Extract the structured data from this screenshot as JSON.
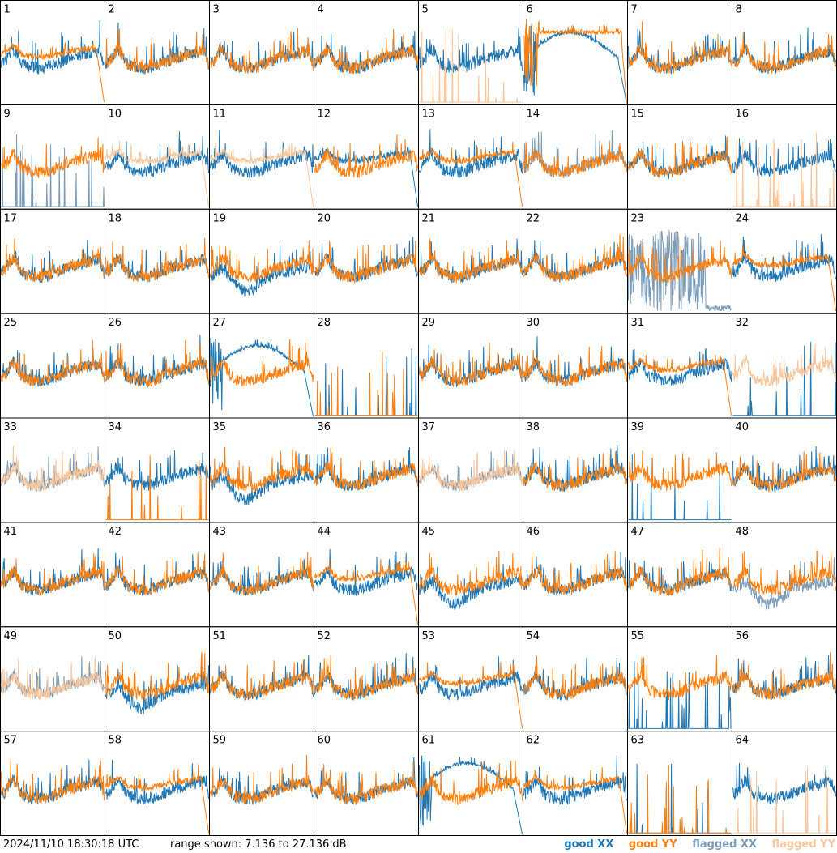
{
  "footer": {
    "timestamp": "2024/11/10 18:30:18 UTC",
    "range": "range shown: 7.136 to 27.136 dB"
  },
  "legend": [
    {
      "label": "good XX",
      "color": "#1f77b4"
    },
    {
      "label": "good YY",
      "color": "#ff7f0e"
    },
    {
      "label": "flagged XX",
      "color": "#7a9cb8"
    },
    {
      "label": "flagged YY",
      "color": "#f9c59a"
    }
  ],
  "chart_data": {
    "type": "line",
    "layout": "8x8 small multiples",
    "ylim_db": [
      7.136,
      27.136
    ],
    "panels": [
      {
        "id": "1",
        "xx": "good",
        "yy": "good",
        "xx_shape": "normal",
        "yy_shape": "cutoff"
      },
      {
        "id": "2",
        "xx": "good",
        "yy": "good",
        "xx_shape": "normal",
        "yy_shape": "normal"
      },
      {
        "id": "3",
        "xx": "good",
        "yy": "good",
        "xx_shape": "normal",
        "yy_shape": "normal"
      },
      {
        "id": "4",
        "xx": "good",
        "yy": "good",
        "xx_shape": "normal",
        "yy_shape": "normal"
      },
      {
        "id": "5",
        "xx": "good",
        "yy": "flagged",
        "xx_shape": "normal",
        "yy_shape": "spikes"
      },
      {
        "id": "6",
        "xx": "good",
        "yy": "good",
        "xx_shape": "hump",
        "yy_shape": "high"
      },
      {
        "id": "7",
        "xx": "good",
        "yy": "good",
        "xx_shape": "normal",
        "yy_shape": "normal"
      },
      {
        "id": "8",
        "xx": "good",
        "yy": "good",
        "xx_shape": "normal",
        "yy_shape": "normal"
      },
      {
        "id": "9",
        "xx": "flagged",
        "yy": "good",
        "xx_shape": "spikes",
        "yy_shape": "normal"
      },
      {
        "id": "10",
        "xx": "good",
        "yy": "flagged",
        "xx_shape": "normal",
        "yy_shape": "cutoff"
      },
      {
        "id": "11",
        "xx": "good",
        "yy": "flagged",
        "xx_shape": "normal",
        "yy_shape": "cutoff"
      },
      {
        "id": "12",
        "xx": "good",
        "yy": "good",
        "xx_shape": "cutoff",
        "yy_shape": "normal"
      },
      {
        "id": "13",
        "xx": "good",
        "yy": "good",
        "xx_shape": "normal",
        "yy_shape": "cutoff"
      },
      {
        "id": "14",
        "xx": "flagged",
        "yy": "good",
        "xx_shape": "normal",
        "yy_shape": "normal"
      },
      {
        "id": "15",
        "xx": "good",
        "yy": "good",
        "xx_shape": "normal",
        "yy_shape": "normal"
      },
      {
        "id": "16",
        "xx": "good",
        "yy": "flagged",
        "xx_shape": "normal",
        "yy_shape": "spikes"
      },
      {
        "id": "17",
        "xx": "good",
        "yy": "good",
        "xx_shape": "normal",
        "yy_shape": "normal"
      },
      {
        "id": "18",
        "xx": "good",
        "yy": "good",
        "xx_shape": "normal",
        "yy_shape": "normal"
      },
      {
        "id": "19",
        "xx": "good",
        "yy": "good",
        "xx_shape": "low",
        "yy_shape": "normal"
      },
      {
        "id": "20",
        "xx": "good",
        "yy": "good",
        "xx_shape": "normal",
        "yy_shape": "normal"
      },
      {
        "id": "21",
        "xx": "good",
        "yy": "good",
        "xx_shape": "normal",
        "yy_shape": "normal"
      },
      {
        "id": "22",
        "xx": "good",
        "yy": "good",
        "xx_shape": "normal",
        "yy_shape": "normal"
      },
      {
        "id": "23",
        "xx": "flagged",
        "yy": "good",
        "xx_shape": "dense",
        "yy_shape": "normal"
      },
      {
        "id": "24",
        "xx": "good",
        "yy": "good",
        "xx_shape": "normal",
        "yy_shape": "cutoff"
      },
      {
        "id": "25",
        "xx": "good",
        "yy": "good",
        "xx_shape": "normal",
        "yy_shape": "normal"
      },
      {
        "id": "26",
        "xx": "good",
        "yy": "good",
        "xx_shape": "normal",
        "yy_shape": "normal"
      },
      {
        "id": "27",
        "xx": "good",
        "yy": "good",
        "xx_shape": "hump",
        "yy_shape": "normal"
      },
      {
        "id": "28",
        "xx": "good",
        "yy": "good",
        "xx_shape": "spikes",
        "yy_shape": "spikes"
      },
      {
        "id": "29",
        "xx": "good",
        "yy": "good",
        "xx_shape": "normal",
        "yy_shape": "normal"
      },
      {
        "id": "30",
        "xx": "good",
        "yy": "good",
        "xx_shape": "normal",
        "yy_shape": "normal"
      },
      {
        "id": "31",
        "xx": "good",
        "yy": "good",
        "xx_shape": "normal",
        "yy_shape": "cutoff"
      },
      {
        "id": "32",
        "xx": "good",
        "yy": "flagged",
        "xx_shape": "spikes",
        "yy_shape": "normal"
      },
      {
        "id": "33",
        "xx": "flagged",
        "yy": "flagged",
        "xx_shape": "normal",
        "yy_shape": "normal"
      },
      {
        "id": "34",
        "xx": "good",
        "yy": "good",
        "xx_shape": "normal",
        "yy_shape": "spikes"
      },
      {
        "id": "35",
        "xx": "good",
        "yy": "good",
        "xx_shape": "low",
        "yy_shape": "normal"
      },
      {
        "id": "36",
        "xx": "good",
        "yy": "good",
        "xx_shape": "normal",
        "yy_shape": "normal"
      },
      {
        "id": "37",
        "xx": "flagged",
        "yy": "flagged",
        "xx_shape": "normal",
        "yy_shape": "normal"
      },
      {
        "id": "38",
        "xx": "good",
        "yy": "good",
        "xx_shape": "normal",
        "yy_shape": "normal"
      },
      {
        "id": "39",
        "xx": "good",
        "yy": "good",
        "xx_shape": "spikes",
        "yy_shape": "normal"
      },
      {
        "id": "40",
        "xx": "good",
        "yy": "good",
        "xx_shape": "normal",
        "yy_shape": "normal"
      },
      {
        "id": "41",
        "xx": "good",
        "yy": "good",
        "xx_shape": "normal",
        "yy_shape": "normal"
      },
      {
        "id": "42",
        "xx": "good",
        "yy": "good",
        "xx_shape": "normal",
        "yy_shape": "normal"
      },
      {
        "id": "43",
        "xx": "good",
        "yy": "good",
        "xx_shape": "normal",
        "yy_shape": "normal"
      },
      {
        "id": "44",
        "xx": "good",
        "yy": "good",
        "xx_shape": "normal",
        "yy_shape": "cutoff"
      },
      {
        "id": "45",
        "xx": "good",
        "yy": "good",
        "xx_shape": "low",
        "yy_shape": "normal"
      },
      {
        "id": "46",
        "xx": "good",
        "yy": "good",
        "xx_shape": "normal",
        "yy_shape": "normal"
      },
      {
        "id": "47",
        "xx": "good",
        "yy": "good",
        "xx_shape": "normal",
        "yy_shape": "normal"
      },
      {
        "id": "48",
        "xx": "flagged",
        "yy": "good",
        "xx_shape": "low",
        "yy_shape": "normal"
      },
      {
        "id": "49",
        "xx": "flagged",
        "yy": "flagged",
        "xx_shape": "normal",
        "yy_shape": "normal"
      },
      {
        "id": "50",
        "xx": "good",
        "yy": "good",
        "xx_shape": "low",
        "yy_shape": "normal"
      },
      {
        "id": "51",
        "xx": "good",
        "yy": "good",
        "xx_shape": "normal",
        "yy_shape": "normal"
      },
      {
        "id": "52",
        "xx": "good",
        "yy": "good",
        "xx_shape": "normal",
        "yy_shape": "normal"
      },
      {
        "id": "53",
        "xx": "good",
        "yy": "good",
        "xx_shape": "normal",
        "yy_shape": "cutoff"
      },
      {
        "id": "54",
        "xx": "good",
        "yy": "good",
        "xx_shape": "normal",
        "yy_shape": "normal"
      },
      {
        "id": "55",
        "xx": "good",
        "yy": "good",
        "xx_shape": "spikes",
        "yy_shape": "normal"
      },
      {
        "id": "56",
        "xx": "good",
        "yy": "good",
        "xx_shape": "normal",
        "yy_shape": "normal"
      },
      {
        "id": "57",
        "xx": "good",
        "yy": "good",
        "xx_shape": "normal",
        "yy_shape": "normal"
      },
      {
        "id": "58",
        "xx": "good",
        "yy": "good",
        "xx_shape": "normal",
        "yy_shape": "cutoff"
      },
      {
        "id": "59",
        "xx": "good",
        "yy": "good",
        "xx_shape": "normal",
        "yy_shape": "normal"
      },
      {
        "id": "60",
        "xx": "good",
        "yy": "good",
        "xx_shape": "normal",
        "yy_shape": "normal"
      },
      {
        "id": "61",
        "xx": "good",
        "yy": "good",
        "xx_shape": "hump",
        "yy_shape": "normal"
      },
      {
        "id": "62",
        "xx": "good",
        "yy": "good",
        "xx_shape": "normal",
        "yy_shape": "cutoff"
      },
      {
        "id": "63",
        "xx": "good",
        "yy": "good",
        "xx_shape": "spikes",
        "yy_shape": "spikes"
      },
      {
        "id": "64",
        "xx": "good",
        "yy": "flagged",
        "xx_shape": "normal",
        "yy_shape": "spikes"
      }
    ]
  }
}
